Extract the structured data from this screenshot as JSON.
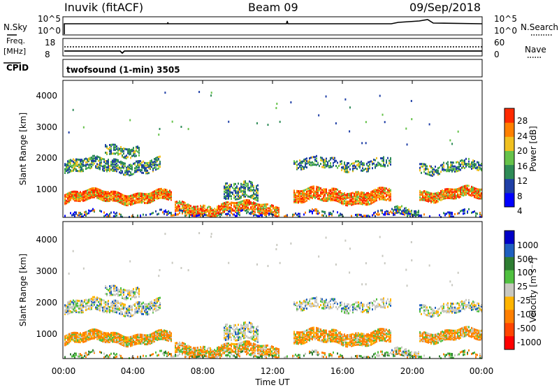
{
  "header": {
    "station": "Inuvik (fitACF)",
    "beam": "Beam 09",
    "date": "09/Sep/2018"
  },
  "strip1": {
    "left_label": "N.Sky",
    "right_label": "N.Search",
    "left_ticks": [
      "10^5",
      "10^0"
    ],
    "right_ticks": [
      "10^5",
      "10^0"
    ]
  },
  "strip2": {
    "left_label_1": "Freq.",
    "left_label_2": "[MHz]",
    "right_label": "Nave",
    "left_ticks": [
      "18",
      "8"
    ],
    "right_ticks": [
      "60",
      "0"
    ]
  },
  "strip3": {
    "left_label": "CPID",
    "program": "twofsound (1-min) 3505"
  },
  "chart_data": [
    {
      "type": "heatmap",
      "title": "",
      "ylabel": "Slant Range [km]",
      "colorbar_label": "Power [dB]",
      "ylim": [
        180,
        4500
      ],
      "yticks": [
        "4000",
        "3000",
        "2000",
        "1000"
      ],
      "colorbar_ticks": [
        "28",
        "24",
        "20",
        "16",
        "12",
        "8",
        "4"
      ],
      "colorbar_colors": [
        "#0000ff",
        "#1f3fa6",
        "#2e8b57",
        "#66c24a",
        "#f0c020",
        "#ff8000",
        "#ff2a00"
      ]
    },
    {
      "type": "heatmap",
      "title": "",
      "ylabel": "Slant Range [km]",
      "colorbar_label": "Velocity [m s-1]",
      "ylim": [
        180,
        4500
      ],
      "yticks": [
        "4000",
        "3000",
        "2000",
        "1000"
      ],
      "colorbar_ticks": [
        "1000",
        "500",
        "100",
        "25",
        "-25",
        "-100",
        "-500",
        "-1000"
      ],
      "colorbar_colors": [
        "#ff0000",
        "#ff4500",
        "#ff7f00",
        "#ffb400",
        "#c8c8c0",
        "#50c040",
        "#2e7d32",
        "#1f5fbf",
        "#0000c8"
      ]
    }
  ],
  "xaxis": {
    "label": "Time UT",
    "ticks": [
      "00:00",
      "04:00",
      "08:00",
      "12:00",
      "16:00",
      "20:00",
      "00:00"
    ]
  }
}
